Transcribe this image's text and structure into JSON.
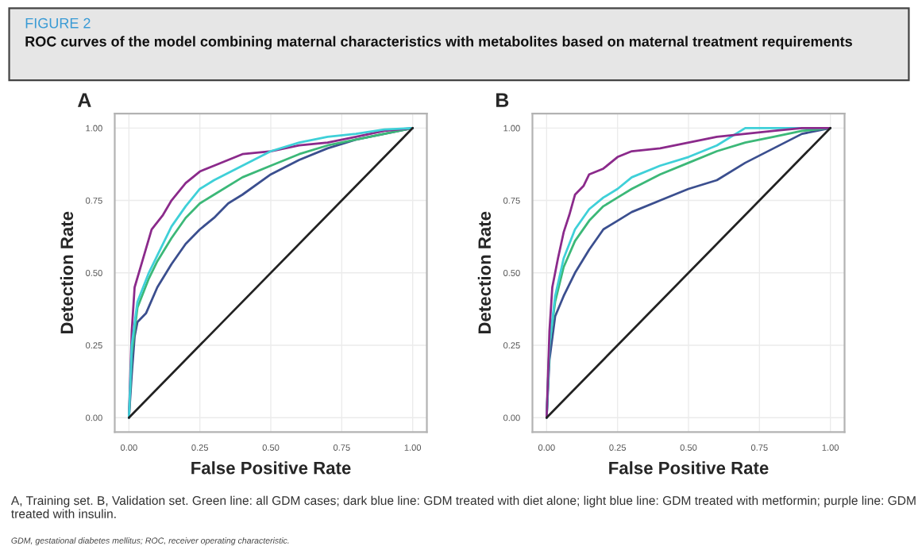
{
  "chart_data": [
    {
      "type": "line",
      "title": "A",
      "xlabel": "False Positive Rate",
      "ylabel": "Detection Rate",
      "annotations": [
        "FIGURE 2",
        "ROC curves of the model combining maternal characteristics with metabolites based on maternal treatment requirements",
        "A, Training set. B, Validation set. Green line: all GDM cases; dark blue line: GDM treated with diet alone; light blue line: GDM treated with metformin; purple line: GDM treated with insulin.",
        "GDM, gestational diabetes mellitus; ROC, receiver operating characteristic."
      ],
      "xlim": [
        -0.05,
        1.05
      ],
      "ylim": [
        -0.05,
        1.05
      ],
      "xticks": [
        {
          "value": 0,
          "label": "0.00"
        },
        {
          "value": 0.25,
          "label": "0.25"
        },
        {
          "value": 0.5,
          "label": "0.50"
        },
        {
          "value": 0.75,
          "label": "0.75"
        },
        {
          "value": 1,
          "label": "1.00"
        }
      ],
      "yticks": [
        {
          "value": 0,
          "label": "0.00"
        },
        {
          "value": 0.25,
          "label": "0.25"
        },
        {
          "value": 0.5,
          "label": "0.50"
        },
        {
          "value": 0.75,
          "label": "0.75"
        },
        {
          "value": 1,
          "label": "1.00"
        }
      ],
      "grid": true,
      "legend": false,
      "series": [
        {
          "color": "#3b4f8f",
          "x": [
            0,
            0.01,
            0.02,
            0.03,
            0.06,
            0.1,
            0.15,
            0.2,
            0.25,
            0.3,
            0.35,
            0.4,
            0.5,
            0.6,
            0.7,
            0.8,
            0.9,
            1
          ],
          "values": [
            0,
            0.15,
            0.28,
            0.33,
            0.36,
            0.45,
            0.53,
            0.6,
            0.65,
            0.69,
            0.74,
            0.77,
            0.84,
            0.89,
            0.93,
            0.96,
            0.98,
            1
          ]
        },
        {
          "color": "#3cb878",
          "x": [
            0,
            0.01,
            0.03,
            0.07,
            0.1,
            0.15,
            0.2,
            0.25,
            0.3,
            0.4,
            0.5,
            0.6,
            0.7,
            0.8,
            0.9,
            1
          ],
          "values": [
            0,
            0.22,
            0.38,
            0.48,
            0.54,
            0.62,
            0.69,
            0.74,
            0.77,
            0.83,
            0.87,
            0.91,
            0.94,
            0.96,
            0.98,
            1
          ]
        },
        {
          "color": "#8b2a8b",
          "x": [
            0,
            0.01,
            0.02,
            0.05,
            0.08,
            0.12,
            0.15,
            0.2,
            0.25,
            0.3,
            0.4,
            0.5,
            0.6,
            0.7,
            0.8,
            0.9,
            1
          ],
          "values": [
            0,
            0.3,
            0.45,
            0.55,
            0.65,
            0.7,
            0.75,
            0.81,
            0.85,
            0.87,
            0.91,
            0.92,
            0.94,
            0.95,
            0.97,
            0.99,
            1
          ]
        },
        {
          "color": "#3fd0d8",
          "x": [
            0,
            0.01,
            0.03,
            0.07,
            0.1,
            0.15,
            0.2,
            0.25,
            0.3,
            0.4,
            0.5,
            0.6,
            0.7,
            0.8,
            0.9,
            1
          ],
          "values": [
            0,
            0.25,
            0.4,
            0.5,
            0.56,
            0.66,
            0.73,
            0.79,
            0.82,
            0.87,
            0.92,
            0.95,
            0.97,
            0.98,
            0.995,
            1
          ]
        },
        {
          "color": "#222222",
          "x": [
            0,
            1
          ],
          "values": [
            0,
            1
          ]
        }
      ]
    },
    {
      "type": "line",
      "title": "B",
      "xlabel": "False Positive Rate",
      "ylabel": "Detection Rate",
      "xlim": [
        -0.05,
        1.05
      ],
      "ylim": [
        -0.05,
        1.05
      ],
      "xticks": [
        {
          "value": 0,
          "label": "0.00"
        },
        {
          "value": 0.25,
          "label": "0.25"
        },
        {
          "value": 0.5,
          "label": "0.50"
        },
        {
          "value": 0.75,
          "label": "0.75"
        },
        {
          "value": 1,
          "label": "1.00"
        }
      ],
      "yticks": [
        {
          "value": 0,
          "label": "0.00"
        },
        {
          "value": 0.25,
          "label": "0.25"
        },
        {
          "value": 0.5,
          "label": "0.50"
        },
        {
          "value": 0.75,
          "label": "0.75"
        },
        {
          "value": 1,
          "label": "1.00"
        }
      ],
      "grid": true,
      "legend": false,
      "series": [
        {
          "color": "#3b4f8f",
          "x": [
            0,
            0.01,
            0.03,
            0.06,
            0.1,
            0.15,
            0.2,
            0.25,
            0.3,
            0.4,
            0.5,
            0.6,
            0.7,
            0.8,
            0.9,
            1
          ],
          "values": [
            0,
            0.2,
            0.35,
            0.42,
            0.5,
            0.58,
            0.65,
            0.68,
            0.71,
            0.75,
            0.79,
            0.82,
            0.88,
            0.93,
            0.98,
            1
          ]
        },
        {
          "color": "#3cb878",
          "x": [
            0,
            0.01,
            0.03,
            0.06,
            0.1,
            0.15,
            0.2,
            0.25,
            0.3,
            0.4,
            0.5,
            0.6,
            0.7,
            0.8,
            0.9,
            1
          ],
          "values": [
            0,
            0.25,
            0.4,
            0.52,
            0.61,
            0.68,
            0.73,
            0.76,
            0.79,
            0.84,
            0.88,
            0.92,
            0.95,
            0.97,
            0.99,
            1
          ]
        },
        {
          "color": "#3fd0d8",
          "x": [
            0,
            0.01,
            0.03,
            0.06,
            0.1,
            0.15,
            0.2,
            0.25,
            0.3,
            0.4,
            0.5,
            0.6,
            0.7,
            1
          ],
          "values": [
            0,
            0.25,
            0.42,
            0.55,
            0.65,
            0.72,
            0.76,
            0.79,
            0.83,
            0.87,
            0.9,
            0.94,
            1.0,
            1
          ]
        },
        {
          "color": "#8b2a8b",
          "x": [
            0,
            0.01,
            0.02,
            0.04,
            0.06,
            0.08,
            0.1,
            0.13,
            0.15,
            0.2,
            0.25,
            0.3,
            0.4,
            0.5,
            0.6,
            0.7,
            0.8,
            0.9,
            1
          ],
          "values": [
            0,
            0.3,
            0.45,
            0.55,
            0.64,
            0.7,
            0.77,
            0.8,
            0.84,
            0.86,
            0.9,
            0.92,
            0.93,
            0.95,
            0.97,
            0.98,
            0.99,
            1.0,
            1
          ]
        },
        {
          "color": "#222222",
          "x": [
            0,
            1
          ],
          "values": [
            0,
            1
          ]
        }
      ]
    }
  ]
}
